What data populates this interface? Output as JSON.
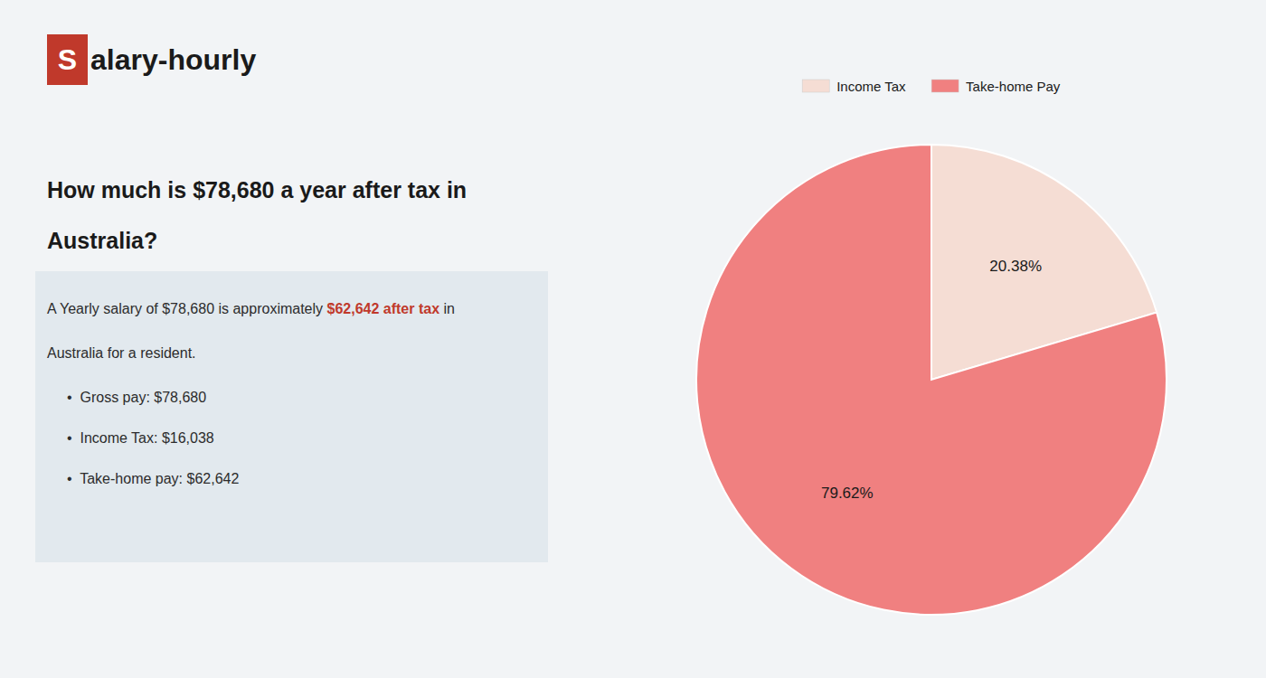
{
  "chart_data": {
    "type": "pie",
    "title": [
      "How much is $78,680 a year after tax in",
      "Australia?"
    ],
    "annotations": [
      {
        "text": "S",
        "color": "#c0392b"
      },
      {
        "text": "alary-hourly"
      },
      {
        "text": "A Yearly salary of $78,680 is approximately "
      },
      {
        "text": "$62,642 after tax",
        "color": "#c0392b"
      },
      {
        "text": " in"
      },
      {
        "text": "Australia for a resident."
      },
      {
        "text": "•  Gross pay: $78,680"
      },
      {
        "text": "•  Income Tax: $16,038"
      },
      {
        "text": "•  Take-home pay: $62,642"
      }
    ],
    "categories": [
      "Income Tax",
      "Take-home Pay"
    ],
    "values": [
      20.38,
      79.62
    ],
    "value_labels": [
      "20.38%",
      "79.62%"
    ],
    "colors": [
      "#f5ddd4",
      "#f08080"
    ],
    "data_labels": true,
    "legend": "top"
  }
}
